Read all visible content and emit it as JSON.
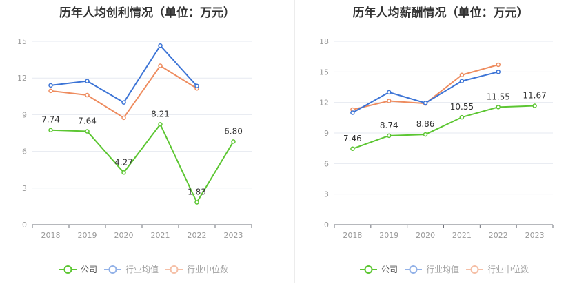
{
  "colors": {
    "company": "#5cc632",
    "avg": "#3c74d6",
    "median": "#ee8c5f",
    "grid": "#e6e9f0",
    "axis": "#999999"
  },
  "legend": {
    "company": "公司",
    "avg": "行业均值",
    "median": "行业中位数"
  },
  "chart_data": [
    {
      "type": "line",
      "title": "历年人均创利情况（单位：万元）",
      "categories": [
        "2018",
        "2019",
        "2020",
        "2021",
        "2022",
        "2023"
      ],
      "ylim": [
        0,
        15
      ],
      "yticks": [
        0,
        3,
        6,
        9,
        12,
        15
      ],
      "grid": true,
      "legend_position": "bottom",
      "series": [
        {
          "name": "公司",
          "key": "company",
          "values": [
            7.74,
            7.64,
            4.27,
            8.21,
            1.83,
            6.8
          ],
          "labels": [
            "7.74",
            "7.64",
            "4.27",
            "8.21",
            "1.83",
            "6.80"
          ]
        },
        {
          "name": "行业均值",
          "key": "avg",
          "values": [
            11.4,
            11.75,
            10.0,
            14.65,
            11.35,
            null
          ]
        },
        {
          "name": "行业中位数",
          "key": "median",
          "values": [
            10.95,
            10.6,
            8.75,
            13.0,
            11.15,
            null
          ]
        }
      ]
    },
    {
      "type": "line",
      "title": "历年人均薪酬情况（单位：万元）",
      "categories": [
        "2018",
        "2019",
        "2020",
        "2021",
        "2022",
        "2023"
      ],
      "ylim": [
        0,
        18
      ],
      "yticks": [
        0,
        3,
        6,
        9,
        12,
        15,
        18
      ],
      "grid": true,
      "legend_position": "bottom",
      "series": [
        {
          "name": "公司",
          "key": "company",
          "values": [
            7.46,
            8.74,
            8.86,
            10.55,
            11.55,
            11.67
          ],
          "labels": [
            "7.46",
            "8.74",
            "8.86",
            "10.55",
            "11.55",
            "11.67"
          ]
        },
        {
          "name": "行业均值",
          "key": "avg",
          "values": [
            11.0,
            13.0,
            11.95,
            14.1,
            15.0,
            null
          ]
        },
        {
          "name": "行业中位数",
          "key": "median",
          "values": [
            11.3,
            12.15,
            11.9,
            14.7,
            15.7,
            null
          ]
        }
      ]
    }
  ]
}
